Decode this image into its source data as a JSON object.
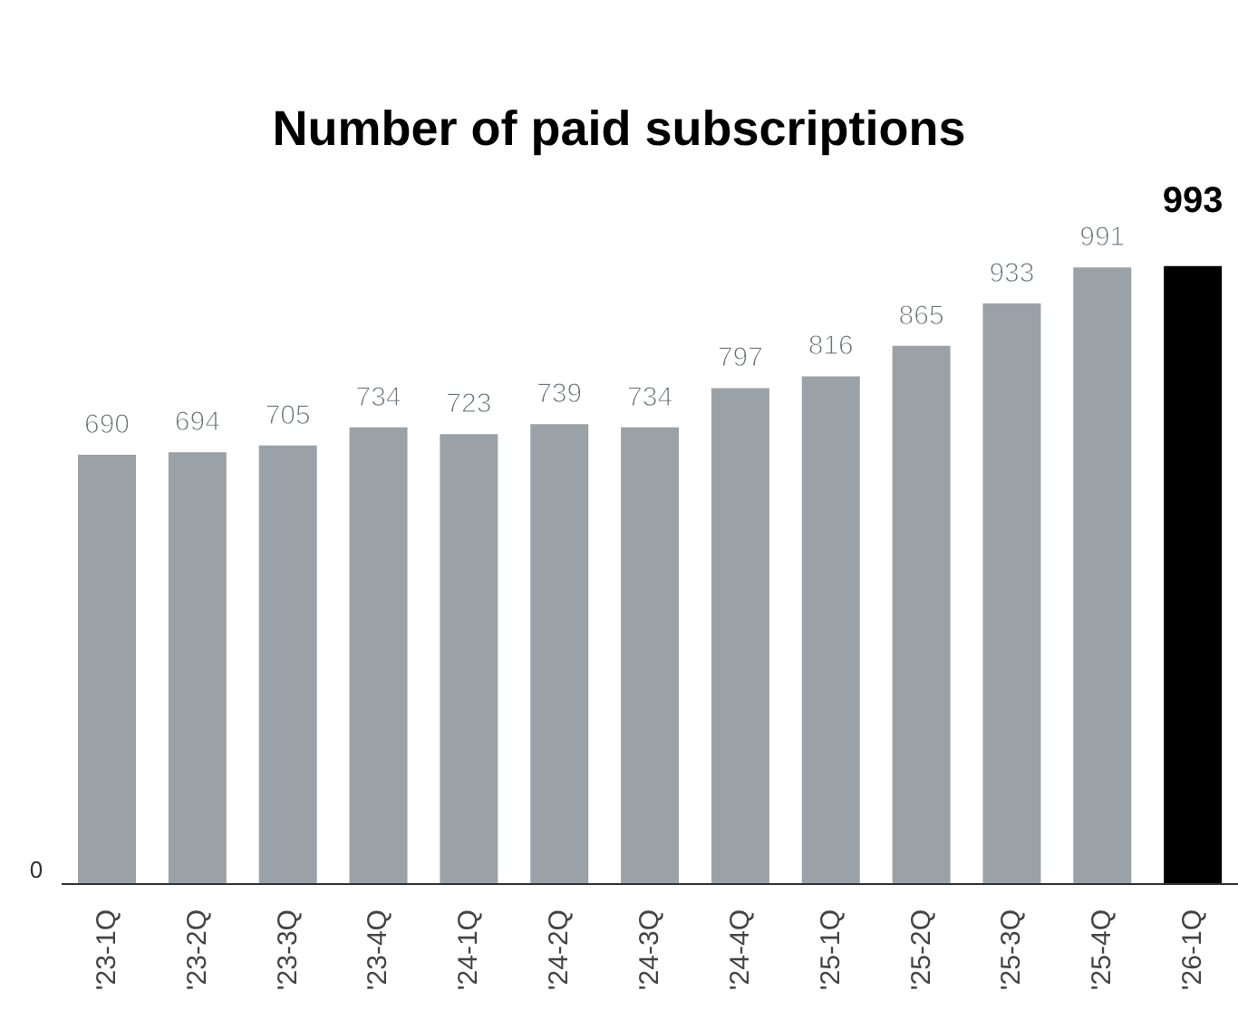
{
  "chart_data": {
    "type": "bar",
    "title": "Number of paid subscriptions",
    "categories": [
      "'23-1Q",
      "'23-2Q",
      "'23-3Q",
      "'23-4Q",
      "'24-1Q",
      "'24-2Q",
      "'24-3Q",
      "'24-4Q",
      "'25-1Q",
      "'25-2Q",
      "'25-3Q",
      "'25-4Q",
      "'26-1Q"
    ],
    "values": [
      690,
      694,
      705,
      734,
      723,
      739,
      734,
      797,
      816,
      865,
      933,
      991,
      993
    ],
    "colors": [
      "#9aa2a8",
      "#9aa2a8",
      "#9aa2a8",
      "#9aa2a8",
      "#9aa2a8",
      "#9aa2a8",
      "#9aa2a8",
      "#9aa2a8",
      "#9aa2a8",
      "#9aa2a8",
      "#9aa2a8",
      "#9aa2a8",
      "#000000"
    ],
    "annotations": [
      "0"
    ],
    "data_labels": true
  }
}
